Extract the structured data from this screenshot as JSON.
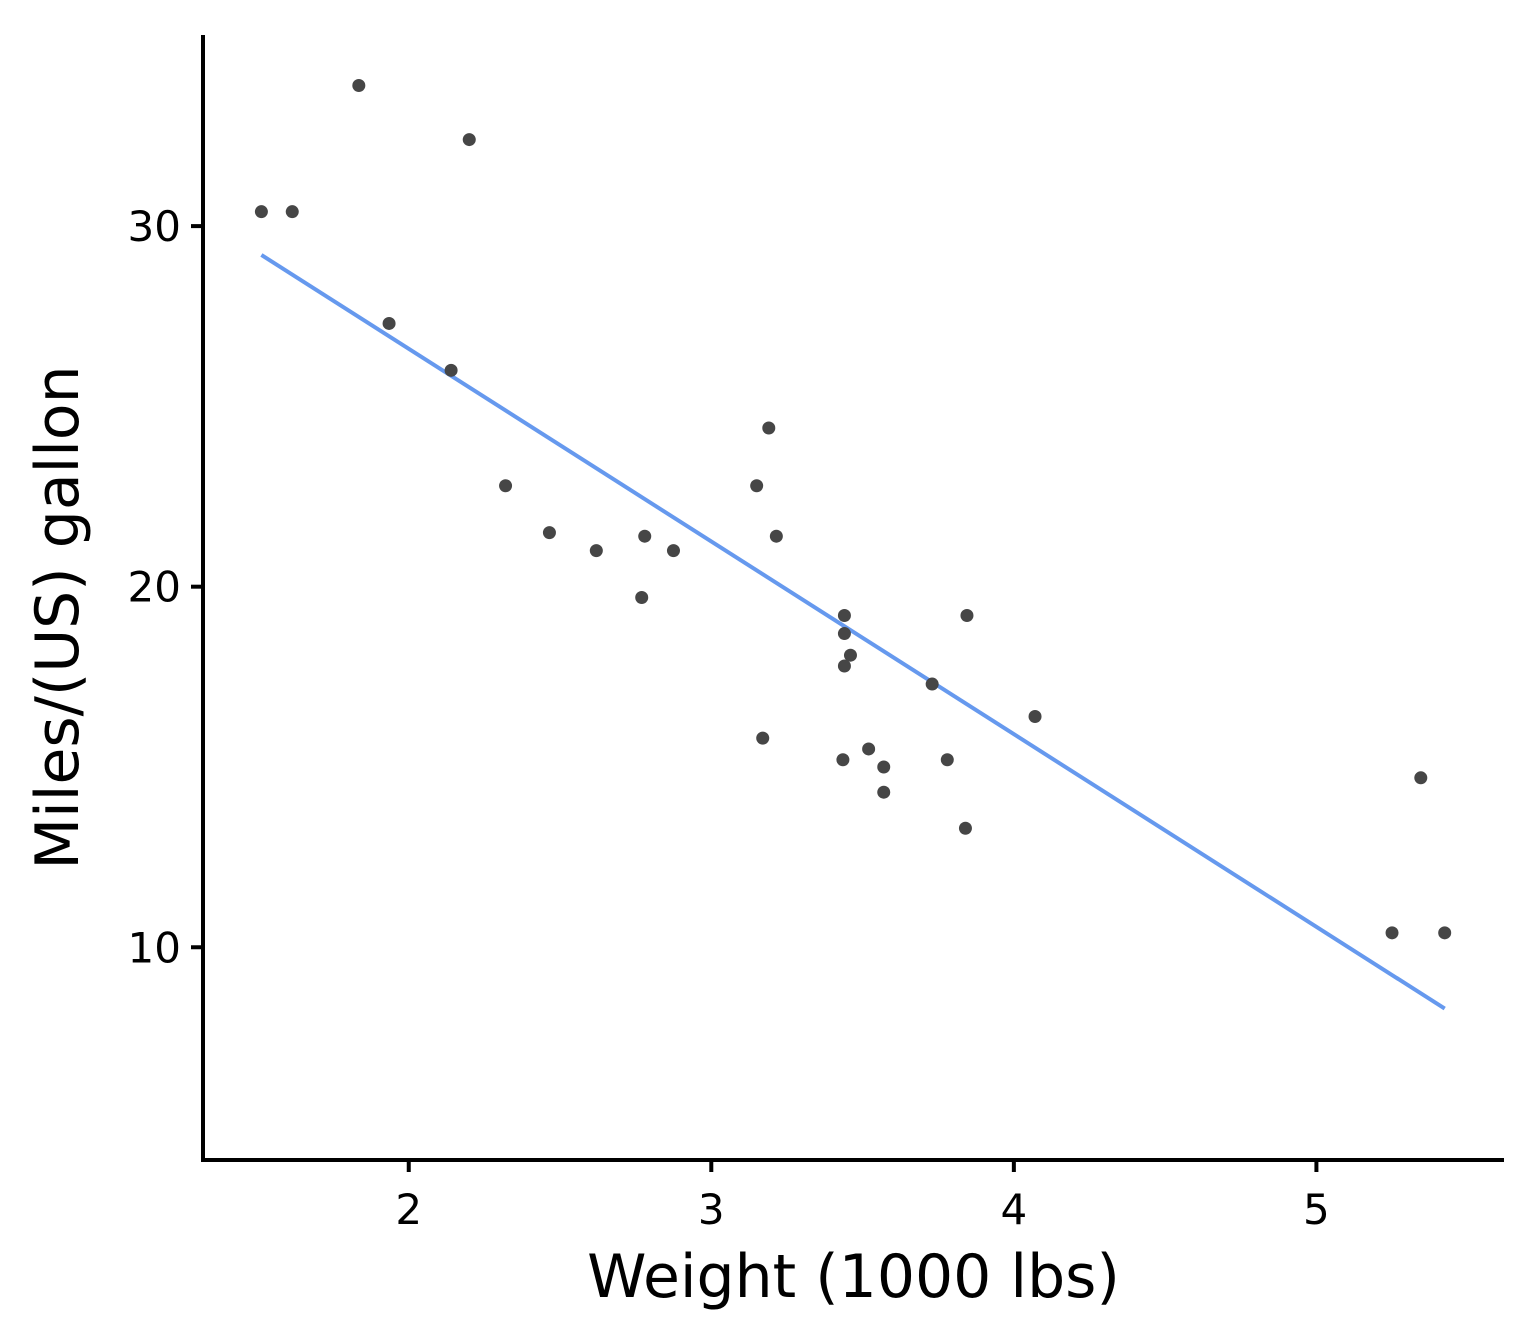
{
  "chart_data": {
    "type": "scatter",
    "title": "",
    "xlabel": "Weight (1000 lbs)",
    "ylabel": "Miles/(US) gallon",
    "xlim": [
      1.32,
      5.62
    ],
    "ylim": [
      4.1,
      35.3
    ],
    "x_ticks": [
      2,
      3,
      4,
      5
    ],
    "y_ticks": [
      10,
      20,
      30
    ],
    "x_tick_labels": [
      "2",
      "3",
      "4",
      "5"
    ],
    "y_tick_labels": [
      "10",
      "20",
      "30"
    ],
    "grid": false,
    "legend": "none",
    "colors": {
      "point": "#464646",
      "fit_line": "#6699ee",
      "axis": "#000000"
    },
    "series": [
      {
        "kind": "points",
        "x": [
          2.62,
          2.875,
          2.32,
          3.215,
          3.44,
          3.46,
          3.57,
          3.19,
          3.15,
          3.44,
          3.44,
          4.07,
          3.73,
          3.78,
          5.25,
          5.424,
          5.345,
          2.2,
          1.615,
          1.835,
          2.465,
          3.52,
          3.435,
          3.84,
          3.845,
          1.935,
          2.14,
          1.513,
          3.17,
          2.77,
          3.57,
          2.78
        ],
        "y": [
          21.0,
          21.0,
          22.8,
          21.4,
          18.7,
          18.1,
          14.3,
          24.4,
          22.8,
          19.2,
          17.8,
          16.4,
          17.3,
          15.2,
          10.4,
          10.4,
          14.7,
          32.4,
          30.4,
          33.9,
          21.5,
          15.5,
          15.2,
          13.3,
          19.2,
          27.3,
          26.0,
          30.4,
          15.8,
          19.7,
          15.0,
          21.4
        ]
      },
      {
        "kind": "line",
        "x": [
          1.513,
          5.424
        ],
        "y": [
          29.2,
          8.3
        ]
      }
    ]
  }
}
